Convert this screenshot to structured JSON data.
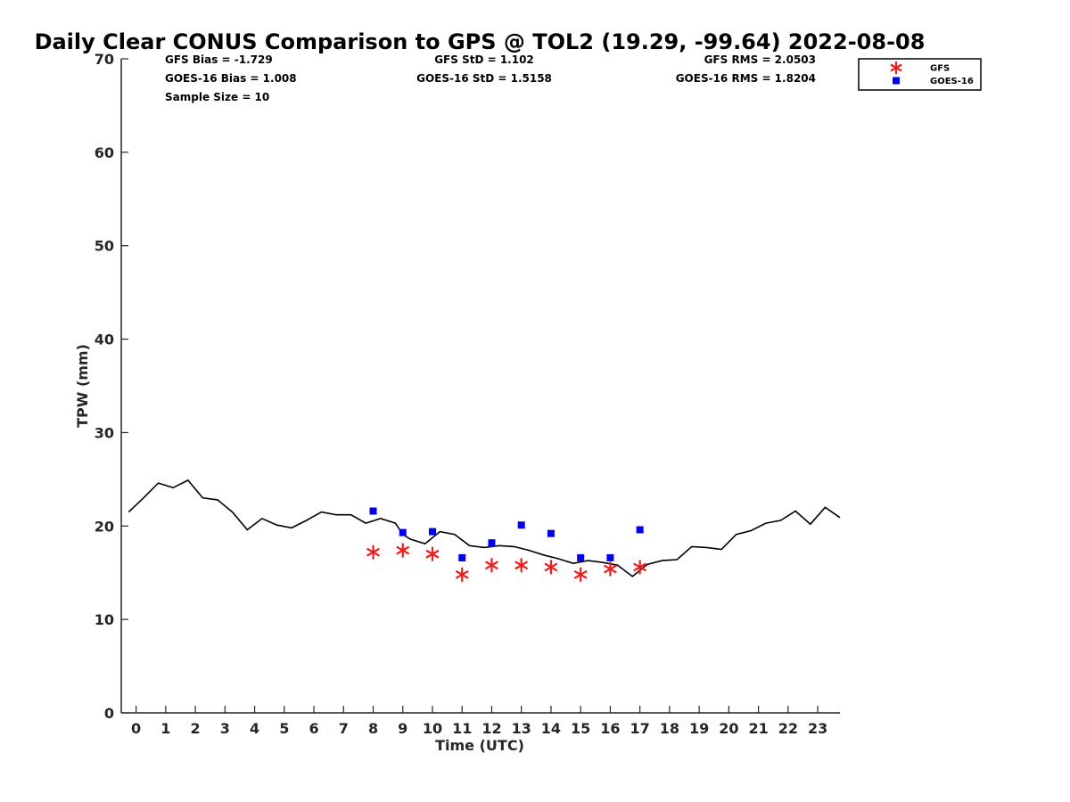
{
  "chart_data": {
    "type": "scatter",
    "title": "Daily Clear CONUS Comparison to GPS @ TOL2 (19.29, -99.64) 2022-08-08",
    "xlabel": "Time (UTC)",
    "ylabel": "TPW (mm)",
    "xlim": [
      -0.5,
      23.75
    ],
    "ylim": [
      0,
      70
    ],
    "x_ticks": [
      "0",
      "1",
      "2",
      "3",
      "4",
      "5",
      "6",
      "7",
      "8",
      "9",
      "10",
      "11",
      "12",
      "13",
      "14",
      "15",
      "16",
      "17",
      "18",
      "19",
      "20",
      "21",
      "22",
      "23"
    ],
    "y_ticks": [
      "0",
      "10",
      "20",
      "30",
      "40",
      "50",
      "60",
      "70"
    ],
    "legend_position": "top-right",
    "stats": [
      [
        "GFS Bias = -1.729",
        "GFS StD = 1.102",
        "GFS RMS = 2.0503"
      ],
      [
        "GOES-16 Bias = 1.008",
        "GOES-16 StD = 1.5158",
        "GOES-16 RMS = 1.8204"
      ],
      [
        "Sample Size = 10"
      ]
    ],
    "gps_line": {
      "color": "#000000",
      "x": [
        -0.25,
        0.25,
        0.75,
        1.25,
        1.75,
        2.25,
        2.75,
        3.25,
        3.75,
        4.25,
        4.75,
        5.25,
        5.75,
        6.25,
        6.75,
        7.25,
        7.75,
        8.25,
        8.75,
        9.0,
        9.25,
        9.75,
        10.25,
        10.75,
        11.25,
        11.75,
        12.25,
        12.75,
        13.25,
        13.75,
        14.25,
        14.75,
        15.25,
        15.75,
        16.25,
        16.75,
        17.25,
        17.75,
        18.25,
        18.75,
        19.25,
        19.75,
        20.25,
        20.75,
        21.25,
        21.75,
        22.25,
        22.75,
        23.25,
        23.75
      ],
      "y": [
        21.5,
        23.0,
        24.6,
        24.1,
        24.9,
        23.0,
        22.8,
        21.5,
        19.6,
        20.8,
        20.1,
        19.8,
        20.6,
        21.5,
        21.2,
        21.2,
        20.3,
        20.8,
        20.3,
        19.1,
        18.6,
        18.1,
        19.4,
        19.1,
        17.9,
        17.7,
        17.9,
        17.8,
        17.4,
        16.9,
        16.5,
        16.0,
        16.3,
        16.1,
        15.8,
        14.6,
        15.9,
        16.3,
        16.4,
        17.8,
        17.7,
        17.5,
        19.1,
        19.5,
        20.3,
        20.6,
        21.6,
        20.2,
        22.0,
        20.9
      ]
    },
    "series": [
      {
        "name": "GFS",
        "marker": "asterisk",
        "color": "#ee1c1c",
        "x": [
          8,
          9,
          10,
          11,
          12,
          13,
          14,
          15,
          16,
          17
        ],
        "y": [
          17.2,
          17.4,
          17.0,
          14.8,
          15.8,
          15.8,
          15.6,
          14.8,
          15.4,
          15.6
        ]
      },
      {
        "name": "GOES-16",
        "marker": "square",
        "color": "#0000ee",
        "x": [
          8,
          9,
          10,
          11,
          12,
          13,
          14,
          15,
          16,
          17
        ],
        "y": [
          21.6,
          19.3,
          19.4,
          16.6,
          18.2,
          20.1,
          19.2,
          16.6,
          16.6,
          19.6
        ]
      }
    ]
  }
}
